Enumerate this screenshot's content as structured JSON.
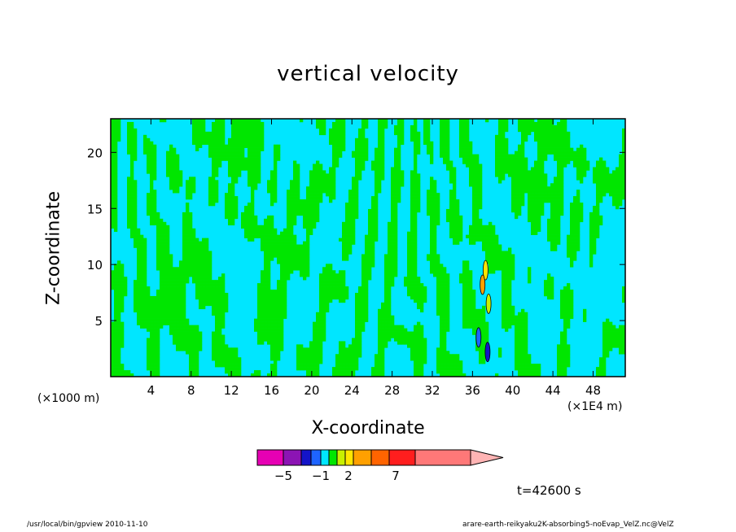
{
  "title": "vertical velocity",
  "footer": {
    "left": "/usr/local/bin/gpview  2010-11-10",
    "right": "arare-earth-reikyaku2K-absorbing5-noEvap_VelZ.nc@VelZ"
  },
  "time_label": "t=42600 s",
  "chart_data": {
    "type": "contour",
    "title": "vertical velocity",
    "xlabel": "X-coordinate",
    "ylabel": "Z-coordinate",
    "x_unit_left": "(×1000 m)",
    "x_unit_right": "(×1E4 m)",
    "xlim": [
      0,
      51.2
    ],
    "ylim": [
      0,
      23
    ],
    "x_ticks": [
      4,
      8,
      12,
      16,
      20,
      24,
      28,
      32,
      36,
      40,
      44,
      48
    ],
    "y_ticks": [
      5,
      10,
      15,
      20
    ],
    "colorbar": {
      "labeled_levels": [
        -5,
        -1,
        2,
        7
      ],
      "tick_labels": [
        "-5",
        "-1",
        "2",
        "7"
      ],
      "colors": [
        "#e600b4",
        "#8c14b4",
        "#1414c8",
        "#1e64ff",
        "#00e6ff",
        "#00e600",
        "#c8f000",
        "#ffe600",
        "#ffa000",
        "#ff6400",
        "#ff1e1e",
        "#ff7878",
        "#ffb4b4"
      ]
    },
    "background_color": "#00e6ff",
    "positive_color": "#00e600"
  }
}
